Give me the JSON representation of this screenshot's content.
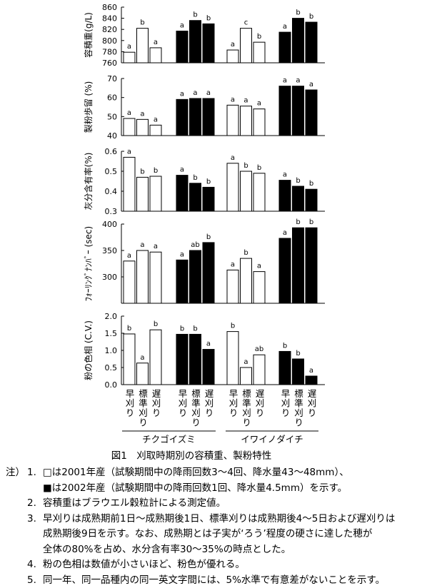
{
  "chart_data": [
    {
      "type": "bar",
      "ylabel": "容積重(g/L)",
      "ylim": [
        760,
        860
      ],
      "yticks": [
        760,
        780,
        800,
        820,
        840,
        860
      ],
      "values": [
        779,
        822,
        787,
        817,
        836,
        830,
        783,
        822,
        797,
        815,
        840,
        833
      ],
      "letters": [
        "a",
        "b",
        "a",
        "a",
        "b",
        "b",
        "a",
        "c",
        "b",
        "a",
        "b",
        "b"
      ],
      "bar_colors": [
        "#ffffff",
        "#000000"
      ]
    },
    {
      "type": "bar",
      "ylabel": "製粉歩留 (%)",
      "ylim": [
        40,
        70
      ],
      "yticks": [
        40,
        50,
        60,
        70
      ],
      "values": [
        49,
        48.5,
        45.5,
        59,
        59.5,
        59.5,
        56,
        55.5,
        54,
        66,
        66,
        64
      ],
      "letters": [
        "a",
        "a",
        "a",
        "a",
        "a",
        "a",
        "a",
        "a",
        "a",
        "a",
        "a",
        "a"
      ],
      "bar_colors": [
        "#ffffff",
        "#000000"
      ]
    },
    {
      "type": "bar",
      "ylabel": "灰分含有率(%)",
      "ylim": [
        0.3,
        0.6
      ],
      "yticks": [
        0.3,
        0.4,
        0.5,
        0.6
      ],
      "values": [
        0.57,
        0.47,
        0.475,
        0.48,
        0.44,
        0.42,
        0.54,
        0.5,
        0.49,
        0.455,
        0.425,
        0.41
      ],
      "letters": [
        "a",
        "b",
        "b",
        "a",
        "b",
        "b",
        "a",
        "b",
        "b",
        "a",
        "b",
        "b"
      ],
      "bar_colors": [
        "#ffffff",
        "#000000"
      ]
    },
    {
      "type": "bar",
      "ylabel": "ﾌｫｰﾘﾝｸﾞﾅﾝﾊﾞｰ (sec)",
      "ylim": [
        250,
        400
      ],
      "yticks": [
        300,
        350,
        400
      ],
      "values": [
        330,
        350,
        347,
        332,
        350,
        365,
        313,
        335,
        310,
        373,
        393,
        393
      ],
      "letters": [
        "a",
        "a",
        "a",
        "a",
        "ab",
        "b",
        "a",
        "b",
        "a",
        "a",
        "b",
        "b"
      ],
      "bar_colors": [
        "#ffffff",
        "#000000"
      ]
    },
    {
      "type": "bar",
      "ylabel": "粉の色相 (C.V.)",
      "ylim": [
        0,
        2
      ],
      "yticks": [
        {
          "value": 0,
          "label": "0.0"
        },
        {
          "value": 0.5,
          "label": "0.5"
        },
        {
          "value": 1,
          "label": "1.0"
        },
        {
          "value": 1.5,
          "label": "1.5"
        },
        {
          "value": 2,
          "label": "2.0"
        }
      ],
      "values": [
        1.48,
        0.63,
        1.6,
        1.47,
        1.47,
        1.03,
        1.55,
        0.5,
        0.87,
        0.97,
        0.75,
        0.25
      ],
      "letters": [
        "b",
        "a",
        "b",
        "b",
        "b",
        "a",
        "b",
        "a",
        "ab",
        "b",
        "b",
        "a"
      ],
      "bar_colors": [
        "#ffffff",
        "#000000"
      ],
      "categories": [
        "早刈り",
        "標準刈り",
        "遅刈り",
        "早刈り",
        "標準刈り",
        "遅刈り",
        "早刈り",
        "標準刈り",
        "遅刈り",
        "早刈り",
        "標準刈り",
        "遅刈り"
      ],
      "groups": [
        "チクゴイズミ",
        "イワイノダイチ"
      ]
    }
  ],
  "caption": "図1　刈取時期別の容積重、製粉特性",
  "notes": {
    "prefix": "注）",
    "items": [
      {
        "number": "1.",
        "lines": [
          "□は2001年産（試験期間中の降雨回数3～4回、降水量43～48mm）、",
          "■は2002年産（試験期間中の降雨回数1回、降水量4.5mm）を示す。"
        ]
      },
      {
        "number": "2.",
        "lines": [
          "容積重はブラウエル穀粒計による測定値。"
        ]
      },
      {
        "number": "3.",
        "lines": [
          "早刈りは成熟期前1日～成熟期後1日、標準刈りは成熟期後4～5日および遅刈りは",
          "成熟期後9日を示す。なお、成熟期とは子実が‘ろう’程度の硬さに達した穂が",
          "全体の80%を占め、水分含有率30～35%の時点とした。"
        ]
      },
      {
        "number": "4.",
        "lines": [
          "粉の色相は数値が小さいほど、粉色が優れる。"
        ]
      },
      {
        "number": "5.",
        "lines": [
          "同一年、同一品種内の同一英文字間には、5%水準で有意差がないことを示す。"
        ]
      }
    ]
  }
}
